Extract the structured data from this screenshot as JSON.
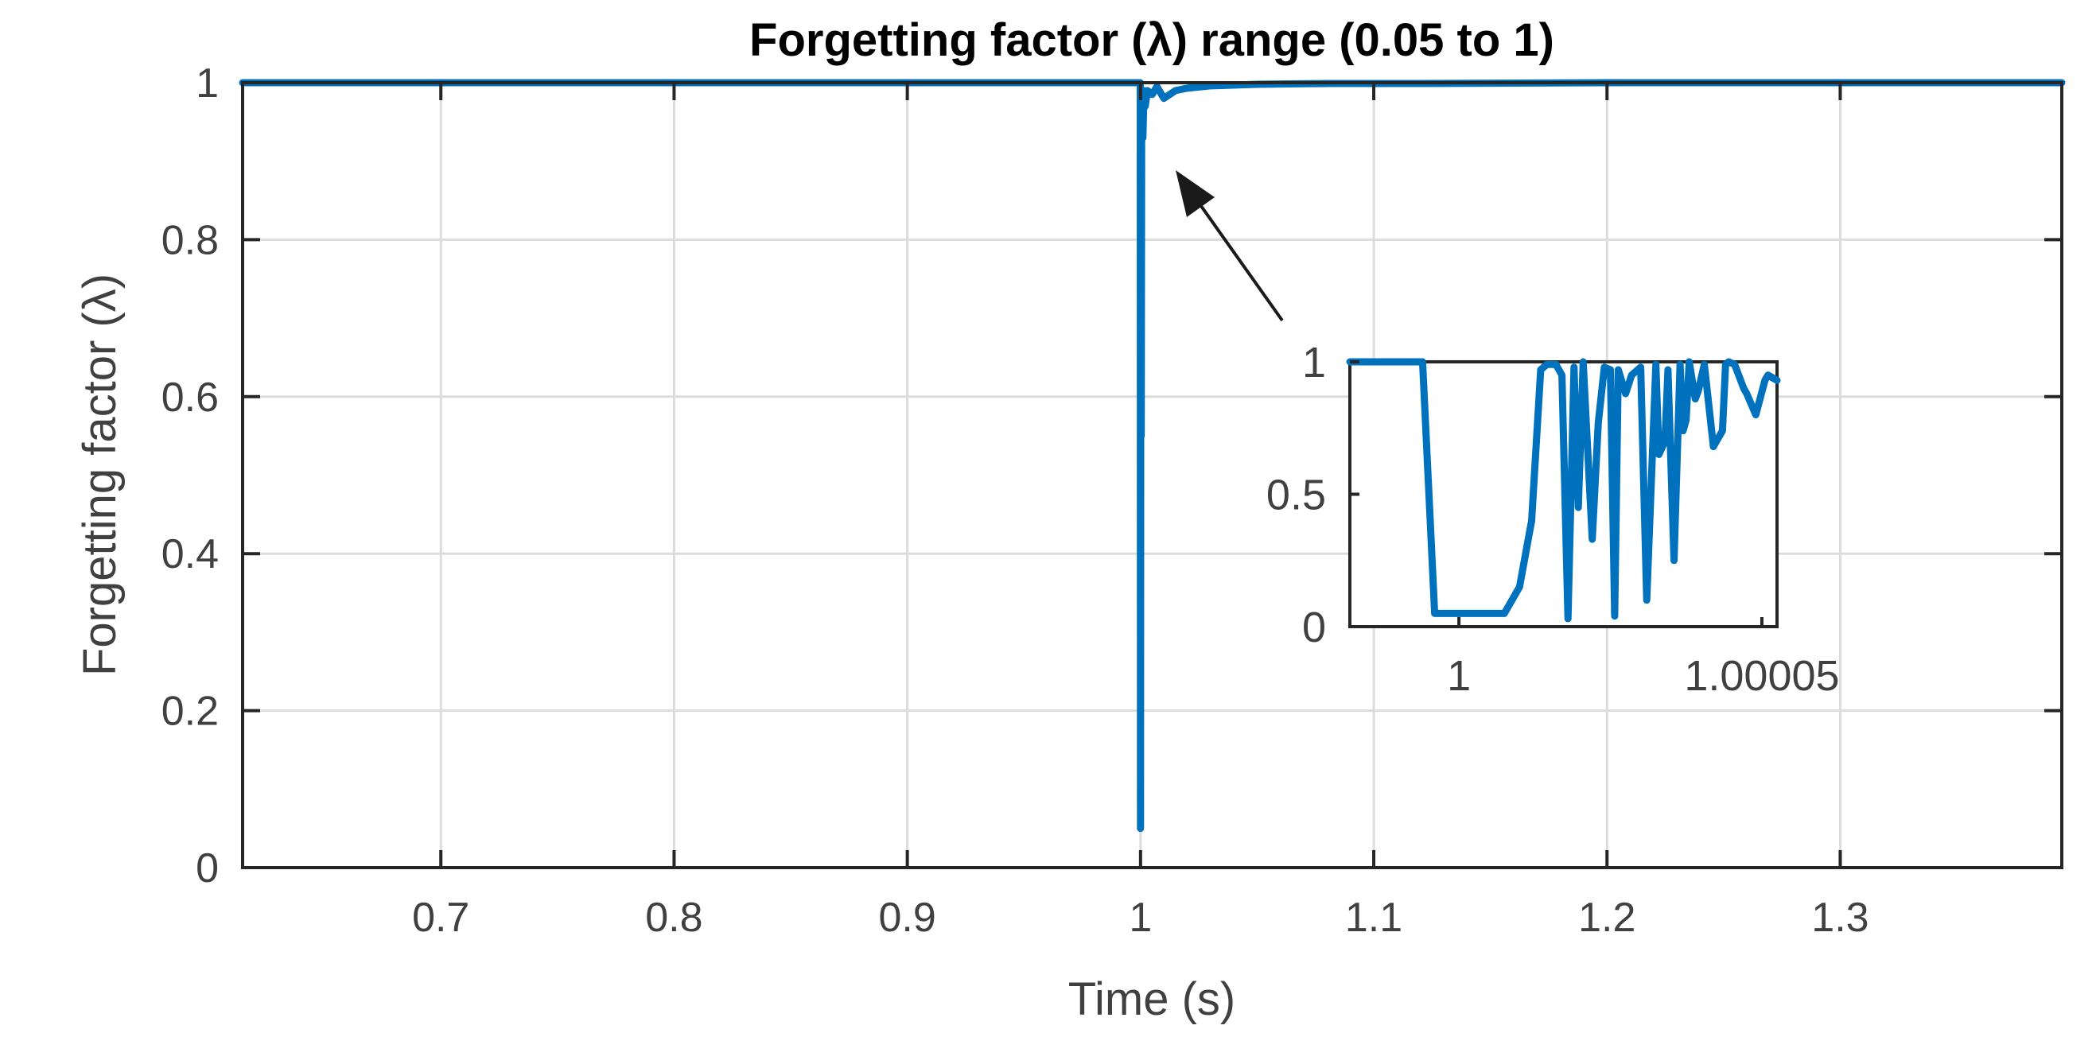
{
  "chart_data": [
    {
      "type": "line",
      "title": "Forgetting factor (λ) range (0.05 to 1)",
      "xlabel": "Time (s)",
      "ylabel": "Forgetting factor (λ)",
      "xlim": [
        0.615,
        1.395
      ],
      "ylim": [
        0,
        1
      ],
      "xticks": [
        0.7,
        0.8,
        0.9,
        1,
        1.1,
        1.2,
        1.3
      ],
      "xtick_labels": [
        "0.7",
        "0.8",
        "0.9",
        "1",
        "1.1",
        "1.2",
        "1.3"
      ],
      "yticks": [
        0,
        0.2,
        0.4,
        0.6,
        0.8,
        1
      ],
      "ytick_labels": [
        "0",
        "0.2",
        "0.4",
        "0.6",
        "0.8",
        "1"
      ],
      "grid": true,
      "line_color": "#0072BD",
      "series": [
        {
          "x": [
            0.615,
            0.9999,
            1.0,
            1.00005,
            1.0001,
            1.0003,
            1.0005,
            1.001,
            1.0015,
            1.002,
            1.003,
            1.005,
            1.007,
            1.01,
            1.015,
            1.02,
            1.03,
            1.05,
            1.08,
            1.12,
            1.2,
            1.3,
            1.395
          ],
          "y": [
            1,
            1,
            0.05,
            0.5,
            0.9,
            0.55,
            0.98,
            0.93,
            0.99,
            0.97,
            0.99,
            0.985,
            0.995,
            0.98,
            0.99,
            0.993,
            0.996,
            0.998,
            0.999,
            0.999,
            1,
            1,
            1
          ]
        }
      ]
    },
    {
      "type": "line",
      "role": "inset",
      "xlim": [
        0.999982,
        1.0000525
      ],
      "ylim": [
        0,
        1
      ],
      "xticks": [
        1,
        1.00005
      ],
      "xtick_labels": [
        "1",
        "1.00005"
      ],
      "yticks": [
        0,
        0.5,
        1
      ],
      "ytick_labels": [
        "0",
        "0.5",
        "1"
      ],
      "line_color": "#0072BD",
      "series": [
        {
          "x": [
            0.999982,
            0.9999875,
            0.99999,
            0.9999925,
            0.999994,
            0.999996,
            1.0,
            1.000003,
            1.000005,
            1.0000075,
            1.00001,
            1.000012,
            1.0000135,
            1.0000145,
            1.000016,
            1.000017,
            1.000018,
            1.000019,
            1.0000197,
            1.0000205,
            1.000022,
            1.000023,
            1.000024,
            1.000025,
            1.0000257,
            1.0000263,
            1.0000275,
            1.0000285,
            1.00003,
            1.000031,
            1.0000325,
            1.000033,
            1.000034,
            1.0000345,
            1.0000355,
            1.0000365,
            1.000037,
            1.0000375,
            1.000038,
            1.000039,
            1.0000395,
            1.0000405,
            1.000042,
            1.0000435,
            1.000044,
            1.0000445,
            1.0000455,
            1.000047,
            1.0000475,
            1.000049,
            1.0000505,
            1.000051,
            1.0000525
          ],
          "y": [
            1,
            1,
            1,
            1,
            1,
            0.05,
            0.05,
            0.05,
            0.05,
            0.05,
            0.15,
            0.4,
            0.97,
            0.99,
            0.99,
            0.95,
            0.03,
            0.98,
            0.45,
            1.0,
            0.33,
            0.77,
            0.98,
            0.97,
            0.04,
            0.97,
            0.88,
            0.95,
            0.98,
            0.1,
            0.99,
            0.65,
            0.7,
            0.97,
            0.25,
            0.99,
            0.74,
            0.78,
            1.0,
            0.86,
            0.89,
            0.99,
            0.68,
            0.74,
            0.99,
            1.0,
            0.99,
            0.9,
            0.88,
            0.8,
            0.93,
            0.95,
            0.93
          ]
        }
      ]
    }
  ]
}
